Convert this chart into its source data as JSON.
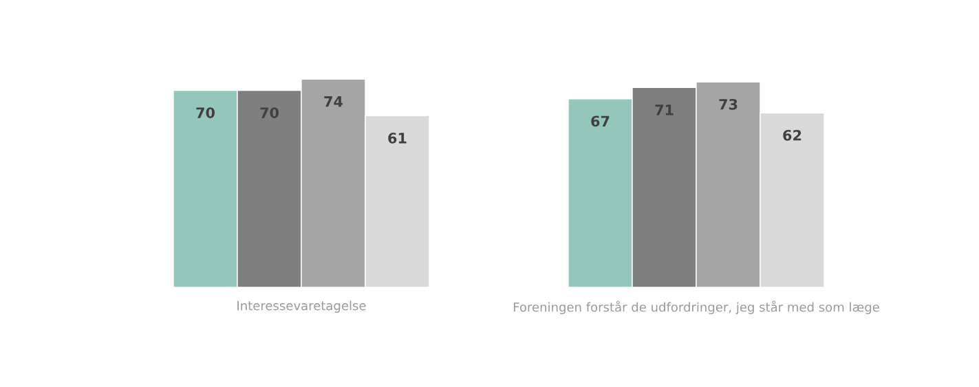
{
  "chart_data": {
    "type": "bar",
    "categories": [
      "Interessevaretagelse",
      "Foreningen forstår de udfordringer, jeg står med som læge"
    ],
    "series": [
      {
        "color": "#94c6bb",
        "values": [
          70,
          67
        ]
      },
      {
        "color": "#7f7f7f",
        "values": [
          70,
          71
        ]
      },
      {
        "color": "#a5a5a5",
        "values": [
          74,
          73
        ]
      },
      {
        "color": "#d9d9d9",
        "values": [
          61,
          62
        ]
      }
    ],
    "data_labels": true,
    "grid": false,
    "legend": false
  }
}
